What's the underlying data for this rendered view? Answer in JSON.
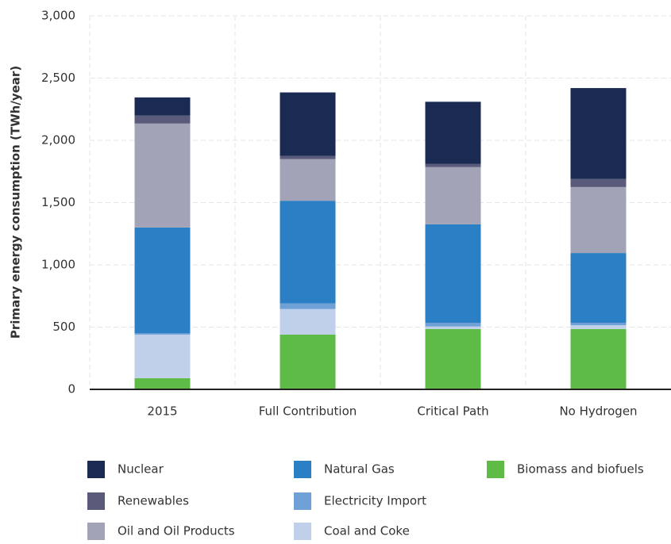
{
  "chart_data": {
    "type": "stacked_bar",
    "y_label": "Primary energy consumption (TWh/year)",
    "categories": [
      "2015",
      "Full Contribution",
      "Critical Path",
      "No Hydrogen"
    ],
    "series": [
      {
        "name": "Biomass and biofuels",
        "color": "#5dbb46",
        "values": [
          90,
          440,
          485,
          485
        ]
      },
      {
        "name": "Coal and Coke",
        "color": "#c0d0ea",
        "values": [
          350,
          205,
          20,
          30
        ]
      },
      {
        "name": "Electricity Import",
        "color": "#6fa0d6",
        "values": [
          10,
          45,
          30,
          20
        ]
      },
      {
        "name": "Natural Gas",
        "color": "#2b80c5",
        "values": [
          850,
          825,
          790,
          560
        ]
      },
      {
        "name": "Oil and Oil Products",
        "color": "#a3a3b8",
        "values": [
          835,
          335,
          460,
          530
        ]
      },
      {
        "name": "Renewables",
        "color": "#5a5a7a",
        "values": [
          65,
          25,
          25,
          65
        ]
      },
      {
        "name": "Nuclear",
        "color": "#1a2a52",
        "values": [
          145,
          510,
          500,
          730
        ]
      }
    ],
    "ylim": [
      0,
      3000
    ],
    "yticks": [
      0,
      500,
      {
        "value": 1000,
        "label": "1,000"
      },
      {
        "value": 1500,
        "label": "1,500"
      },
      {
        "value": 2000,
        "label": "2,000"
      },
      {
        "value": 2500,
        "label": "2,500"
      },
      {
        "value": 3000,
        "label": "3,000"
      }
    ],
    "grid": true
  }
}
